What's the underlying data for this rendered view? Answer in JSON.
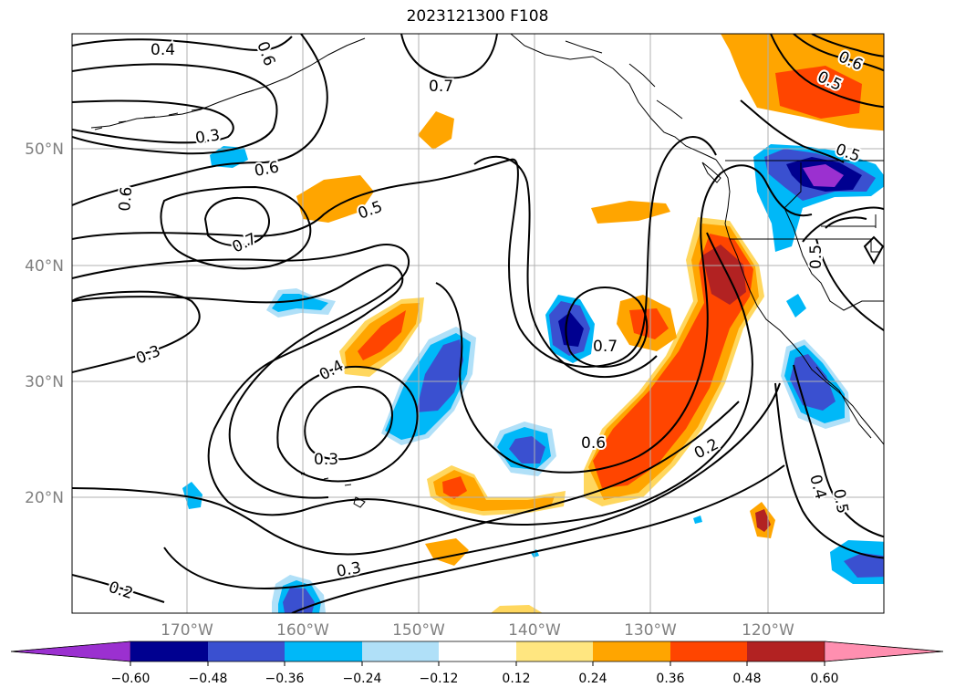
{
  "title": "2023121300 F108",
  "lat_labels": [
    "50°N",
    "40°N",
    "30°N",
    "20°N"
  ],
  "lon_labels": [
    "170°W",
    "160°W",
    "150°W",
    "140°W",
    "130°W",
    "120°W"
  ],
  "contour_labels": {
    "c1": "0.4",
    "c2": "0.7",
    "c3": "0.6",
    "c4": "0.5",
    "c5": "0.3",
    "c6": "0.6",
    "c7": "0.6",
    "c8": "0.5",
    "c9": "0.7",
    "c10": "0.3",
    "c11": "0.4",
    "c12": "0.3",
    "c13": "0.7",
    "c14": "0.6",
    "c15": "0.2",
    "c16": "0.3",
    "c17": "0.2",
    "c18": "0.5",
    "c19": "0.4",
    "c20": "0.5",
    "c21": "0.6",
    "c22": "0.5"
  },
  "colorbar": {
    "ticks": [
      "-0.60",
      "-0.48",
      "-0.36",
      "-0.24",
      "-0.12",
      "0.12",
      "0.24",
      "0.36",
      "0.48",
      "0.60"
    ],
    "colors": {
      "neg_ext": "#9b30d0",
      "neg_060": "#000090",
      "neg_048": "#3a50d0",
      "neg_036": "#00b8f8",
      "neg_024": "#b0e0f8",
      "neutral": "#ffffff",
      "pos_012": "#ffe680",
      "pos_024": "#ffa500",
      "pos_036": "#ff4500",
      "pos_048": "#b22222",
      "pos_ext": "#ff8fb0"
    }
  }
}
